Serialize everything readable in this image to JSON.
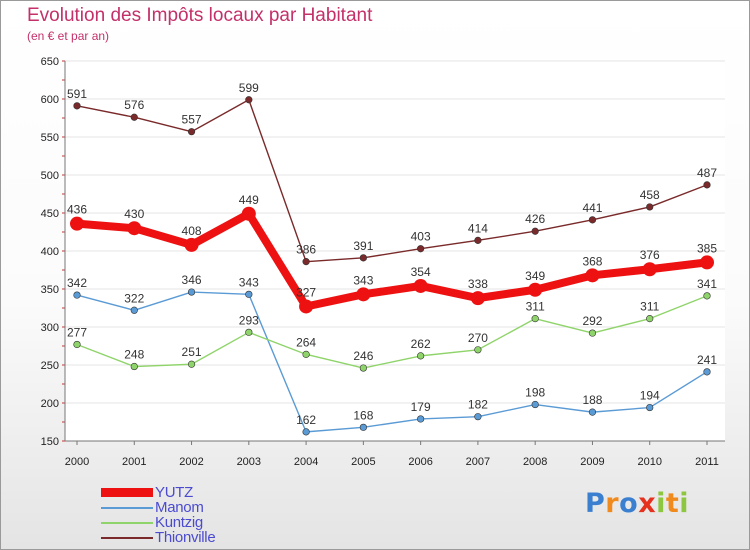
{
  "chart_data": {
    "type": "line",
    "title": "Evolution des Impôts locaux par Habitant",
    "subtitle": "(en € et par an)",
    "xlabel": "",
    "ylabel": "",
    "categories": [
      "2000",
      "2001",
      "2002",
      "2003",
      "2004",
      "2005",
      "2006",
      "2007",
      "2008",
      "2009",
      "2010",
      "2011"
    ],
    "ylim": [
      150,
      650
    ],
    "yticks": [
      150,
      200,
      250,
      300,
      350,
      400,
      450,
      500,
      550,
      600,
      650
    ],
    "grid": true,
    "legend_position": "bottom-left",
    "series": [
      {
        "name": "Thionville",
        "color": "#7a2a2a",
        "values": [
          591,
          576,
          557,
          599,
          386,
          391,
          403,
          414,
          426,
          441,
          458,
          487
        ]
      },
      {
        "name": "Manom",
        "color": "#5b9bd5",
        "values": [
          342,
          322,
          346,
          343,
          162,
          168,
          179,
          182,
          198,
          188,
          194,
          241
        ]
      },
      {
        "name": "Kuntzig",
        "color": "#8fd46a",
        "values": [
          277,
          248,
          251,
          293,
          264,
          246,
          262,
          270,
          311,
          292,
          311,
          341
        ]
      },
      {
        "name": "YUTZ",
        "color": "#ee1111",
        "values": [
          436,
          430,
          408,
          449,
          327,
          343,
          354,
          338,
          349,
          368,
          376,
          385
        ]
      }
    ]
  },
  "legend": {
    "items": [
      {
        "label": "YUTZ",
        "color": "#ee1111"
      },
      {
        "label": "Manom",
        "color": "#5b9bd5"
      },
      {
        "label": "Kuntzig",
        "color": "#8fd46a"
      },
      {
        "label": "Thionville",
        "color": "#7a2a2a"
      }
    ]
  },
  "logo": {
    "text": "Proxiti",
    "letters": [
      "P",
      "r",
      "o",
      "x",
      "i",
      "t",
      "i"
    ],
    "colors": [
      "#3a7fd0",
      "#f08a1c",
      "#3a7fd0",
      "#e5311e",
      "#8dc63f",
      "#f08a1c",
      "#8dc63f"
    ]
  }
}
